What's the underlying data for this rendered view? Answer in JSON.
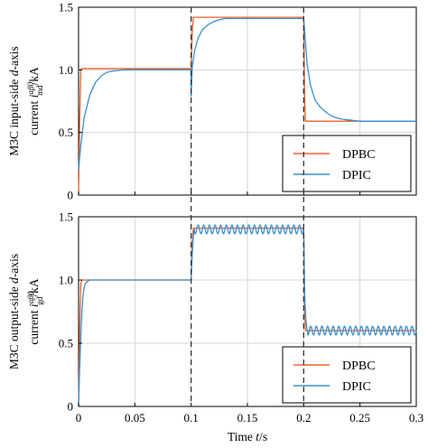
{
  "colors": {
    "dpbc": "#e8622a",
    "dpic": "#3a8fcf",
    "grid": "#d4d4d4",
    "marker_dash": "#333333"
  },
  "xaxis": {
    "label_prefix": "Time ",
    "label_var": "t",
    "label_suffix": "/s"
  },
  "chart_data": [
    {
      "type": "line",
      "ylabel": {
        "line1_a": "M3C input-side ",
        "line1_var": "d",
        "line1_b": "-axis",
        "line2_a": "current ",
        "line2_sym": "i",
        "line2_sup": "αβ0",
        "line2_sub": "md",
        "line2_b": "/kA"
      },
      "xlim": [
        0,
        0.3
      ],
      "ylim": [
        0,
        1.5
      ],
      "xticks": [
        0,
        0.05,
        0.1,
        0.15,
        0.2,
        0.25,
        0.3
      ],
      "xtick_labels": [
        "",
        "",
        "",
        "",
        "",
        "",
        ""
      ],
      "yticks": [
        0,
        0.5,
        1.0,
        1.5
      ],
      "ytick_labels": [
        "0",
        "0.5",
        "1.0",
        "1.5"
      ],
      "grid": true,
      "legend_position": "lower-right",
      "step_times": [
        0.1,
        0.2
      ],
      "levels": [
        1.0,
        1.41,
        0.59
      ],
      "series": [
        {
          "name": "DPBC",
          "color_key": "dpbc",
          "x": [
            0,
            0.001,
            0.002,
            0.003,
            0.0995,
            0.1,
            0.101,
            0.102,
            0.104,
            0.1995,
            0.2,
            0.2008,
            0.2015,
            0.3
          ],
          "y": [
            0.0,
            0.6,
            1.0,
            1.01,
            1.01,
            1.0,
            1.3,
            1.42,
            1.42,
            1.42,
            1.42,
            0.8,
            0.59,
            0.59
          ]
        },
        {
          "name": "DPIC",
          "color_key": "dpic",
          "x": [
            0,
            0.002,
            0.005,
            0.01,
            0.015,
            0.02,
            0.025,
            0.03,
            0.035,
            0.04,
            0.045,
            0.05,
            0.06,
            0.07,
            0.0999,
            0.1,
            0.101,
            0.103,
            0.106,
            0.11,
            0.115,
            0.12,
            0.125,
            0.13,
            0.14,
            0.15,
            0.2,
            0.2005,
            0.203,
            0.206,
            0.21,
            0.215,
            0.22,
            0.225,
            0.23,
            0.235,
            0.24,
            0.25,
            0.3
          ],
          "y": [
            0.2,
            0.4,
            0.62,
            0.8,
            0.9,
            0.95,
            0.98,
            0.99,
            0.995,
            1.0,
            1.0,
            1.0,
            1.0,
            1.0,
            1.0,
            0.79,
            1.02,
            1.15,
            1.25,
            1.32,
            1.36,
            1.385,
            1.4,
            1.41,
            1.41,
            1.41,
            1.41,
            1.35,
            1.05,
            0.88,
            0.76,
            0.7,
            0.66,
            0.63,
            0.615,
            0.605,
            0.6,
            0.59,
            0.59
          ]
        }
      ]
    },
    {
      "type": "line",
      "ylabel": {
        "line1_a": "M3C output-side ",
        "line1_var": "d",
        "line1_b": "-axis",
        "line2_a": "current ",
        "line2_sym": "i",
        "line2_sup": "αβ0",
        "line2_sub": "gd",
        "line2_b": "/kA"
      },
      "xlim": [
        0,
        0.3
      ],
      "ylim": [
        0,
        1.5
      ],
      "xticks": [
        0,
        0.05,
        0.1,
        0.15,
        0.2,
        0.25,
        0.3
      ],
      "xtick_labels": [
        "0",
        "0.05",
        "0.1",
        "0.15",
        "0.2",
        "0.25",
        "0.3"
      ],
      "yticks": [
        0,
        0.5,
        1.0,
        1.5
      ],
      "ytick_labels": [
        "0",
        "0.5",
        "1.0",
        "1.5"
      ],
      "grid": true,
      "legend_position": "lower-right",
      "step_times": [
        0.1,
        0.2
      ],
      "levels": [
        1.0,
        1.41,
        0.59
      ],
      "series": [
        {
          "name": "DPBC",
          "color_key": "dpbc",
          "x": [
            0,
            0.001,
            0.002,
            0.003,
            0.0995,
            0.1,
            0.101,
            0.102,
            0.104,
            0.1995,
            0.2,
            0.2008,
            0.2015,
            0.3
          ],
          "y": [
            0.0,
            0.6,
            0.97,
            1.0,
            1.0,
            1.0,
            1.3,
            1.41,
            1.41,
            1.41,
            1.41,
            0.8,
            0.6,
            0.6
          ]
        },
        {
          "name": "DPIC",
          "color_key": "dpic",
          "x": [
            0,
            0.001,
            0.002,
            0.003,
            0.004,
            0.005,
            0.006,
            0.008,
            0.01,
            0.05,
            0.0999,
            0.1,
            0.101,
            0.102,
            0.103,
            0.2,
            0.2005,
            0.201,
            0.202,
            0.203,
            0.3
          ],
          "y": [
            0.0,
            0.3,
            0.55,
            0.75,
            0.88,
            0.94,
            0.97,
            0.99,
            1.0,
            1.0,
            1.0,
            1.0,
            1.2,
            1.35,
            1.4,
            1.4,
            1.1,
            0.85,
            0.68,
            0.6,
            0.6
          ],
          "ripple": {
            "amplitude_kA": 0.035,
            "frequency_hz": 200,
            "start_s": 0.1
          }
        }
      ]
    }
  ]
}
